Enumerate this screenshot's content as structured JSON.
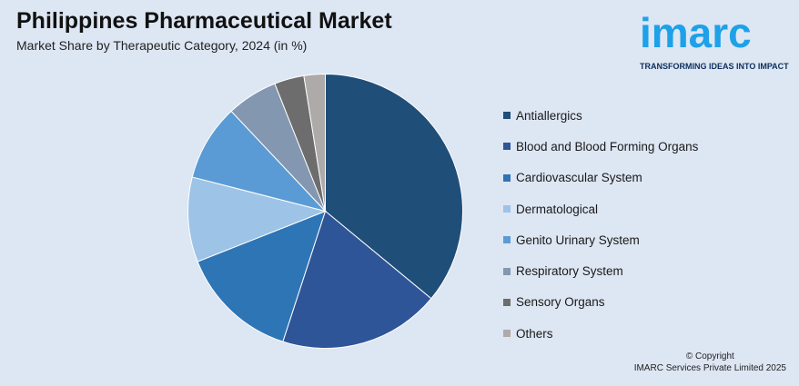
{
  "header": {
    "title": "Philippines Pharmaceutical Market",
    "subtitle": "Market Share by Therapeutic Category, 2024 (in %)"
  },
  "logo": {
    "word": "imarc",
    "tagline": "TRANSFORMING IDEAS INTO IMPACT"
  },
  "footer": {
    "line1": "© Copyright",
    "line2": "IMARC Services Private Limited 2025"
  },
  "chart_data": {
    "type": "pie",
    "title": "Philippines Pharmaceutical Market",
    "subtitle": "Market Share by Therapeutic Category, 2024 (in %)",
    "legend_position": "right",
    "slices": [
      {
        "name": "Antiallergics",
        "value": 36,
        "color": "#1f4e79"
      },
      {
        "name": "Blood and Blood Forming Organs",
        "value": 19,
        "color": "#2e5597"
      },
      {
        "name": "Cardiovascular System",
        "value": 14,
        "color": "#2e75b6"
      },
      {
        "name": "Dermatological",
        "value": 10,
        "color": "#9dc3e6"
      },
      {
        "name": "Genito Urinary System",
        "value": 9,
        "color": "#5b9bd5"
      },
      {
        "name": "Respiratory System",
        "value": 6,
        "color": "#8497b0"
      },
      {
        "name": "Sensory Organs",
        "value": 3.5,
        "color": "#6d6d6d"
      },
      {
        "name": "Others",
        "value": 2.5,
        "color": "#aeaaaa"
      }
    ]
  }
}
